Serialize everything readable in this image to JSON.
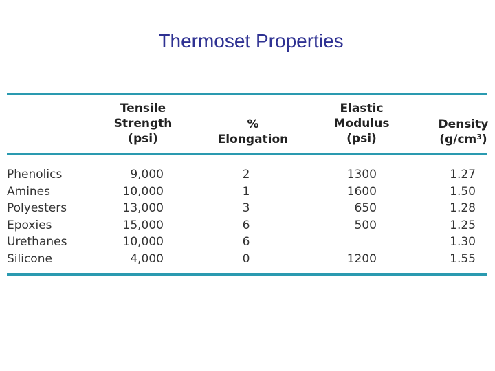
{
  "title": "Thermoset Properties",
  "headers": {
    "tensile": [
      "Tensile",
      "Strength",
      "(psi)"
    ],
    "elongation": [
      "%",
      "Elongation"
    ],
    "modulus": [
      "Elastic",
      "Modulus",
      "(psi)"
    ],
    "density_line1": "Density",
    "density_line2_pre": "(g/cm",
    "density_sup": "3",
    "density_line2_post": ")"
  },
  "rows": [
    {
      "name": "Phenolics",
      "tensile": "9,000",
      "elongation": "2",
      "modulus": "1300",
      "density": "1.27"
    },
    {
      "name": "Amines",
      "tensile": "10,000",
      "elongation": "1",
      "modulus": "1600",
      "density": "1.50"
    },
    {
      "name": "Polyesters",
      "tensile": "13,000",
      "elongation": "3",
      "modulus": "650",
      "density": "1.28"
    },
    {
      "name": "Epoxies",
      "tensile": "15,000",
      "elongation": "6",
      "modulus": "500",
      "density": "1.25"
    },
    {
      "name": "Urethanes",
      "tensile": "10,000",
      "elongation": "6",
      "modulus": "",
      "density": "1.30"
    },
    {
      "name": "Silicone",
      "tensile": "4,000",
      "elongation": "0",
      "modulus": "1200",
      "density": "1.55"
    }
  ],
  "colors": {
    "title": "#2e3192",
    "rule": "#2a9ab0"
  }
}
